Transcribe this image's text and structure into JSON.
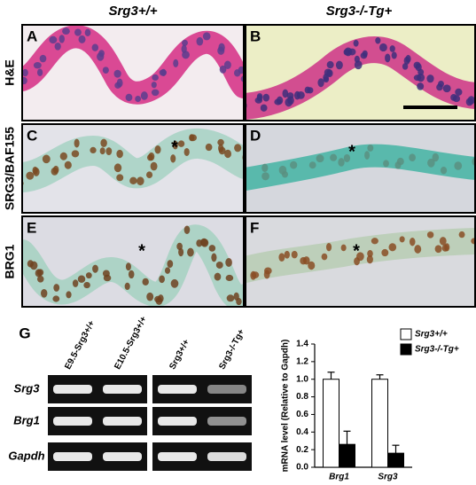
{
  "columns": [
    "Srg3+/+",
    "Srg3-/-Tg+"
  ],
  "rows": [
    "H&E",
    "SRG3/BAF155",
    "BRG1"
  ],
  "panels": [
    {
      "letter": "A"
    },
    {
      "letter": "B"
    },
    {
      "letter": "C",
      "marker": "*"
    },
    {
      "letter": "D",
      "marker": "*"
    },
    {
      "letter": "E",
      "marker": "*"
    },
    {
      "letter": "F",
      "marker": "*"
    }
  ],
  "gel": {
    "letter": "G",
    "lanes": [
      "E9.5-Srg3+/+",
      "E10.5-Srg3+/+",
      "Srg3+/+",
      "Srg3-/-Tg+"
    ],
    "genes": [
      "Srg3",
      "Brg1",
      "Gapdh"
    ]
  },
  "chart_data": {
    "type": "bar",
    "ylabel": "mRNA level (Relative to Gapdh)",
    "categories": [
      "Brg1",
      "Srg3"
    ],
    "series": [
      {
        "name": "Srg3+/+",
        "color": "#ffffff",
        "values": [
          1.0,
          1.0
        ],
        "errors": [
          0.08,
          0.05
        ]
      },
      {
        "name": "Srg3-/-Tg+",
        "color": "#000000",
        "values": [
          0.26,
          0.16
        ],
        "errors": [
          0.15,
          0.09
        ]
      }
    ],
    "ylim": [
      0,
      1.4
    ],
    "yticks": [
      {
        "value": 0,
        "label": "0.0"
      },
      0.2,
      0.4,
      0.6,
      0.8,
      {
        "value": 1,
        "label": "1.0"
      },
      1.2,
      1.4
    ]
  }
}
